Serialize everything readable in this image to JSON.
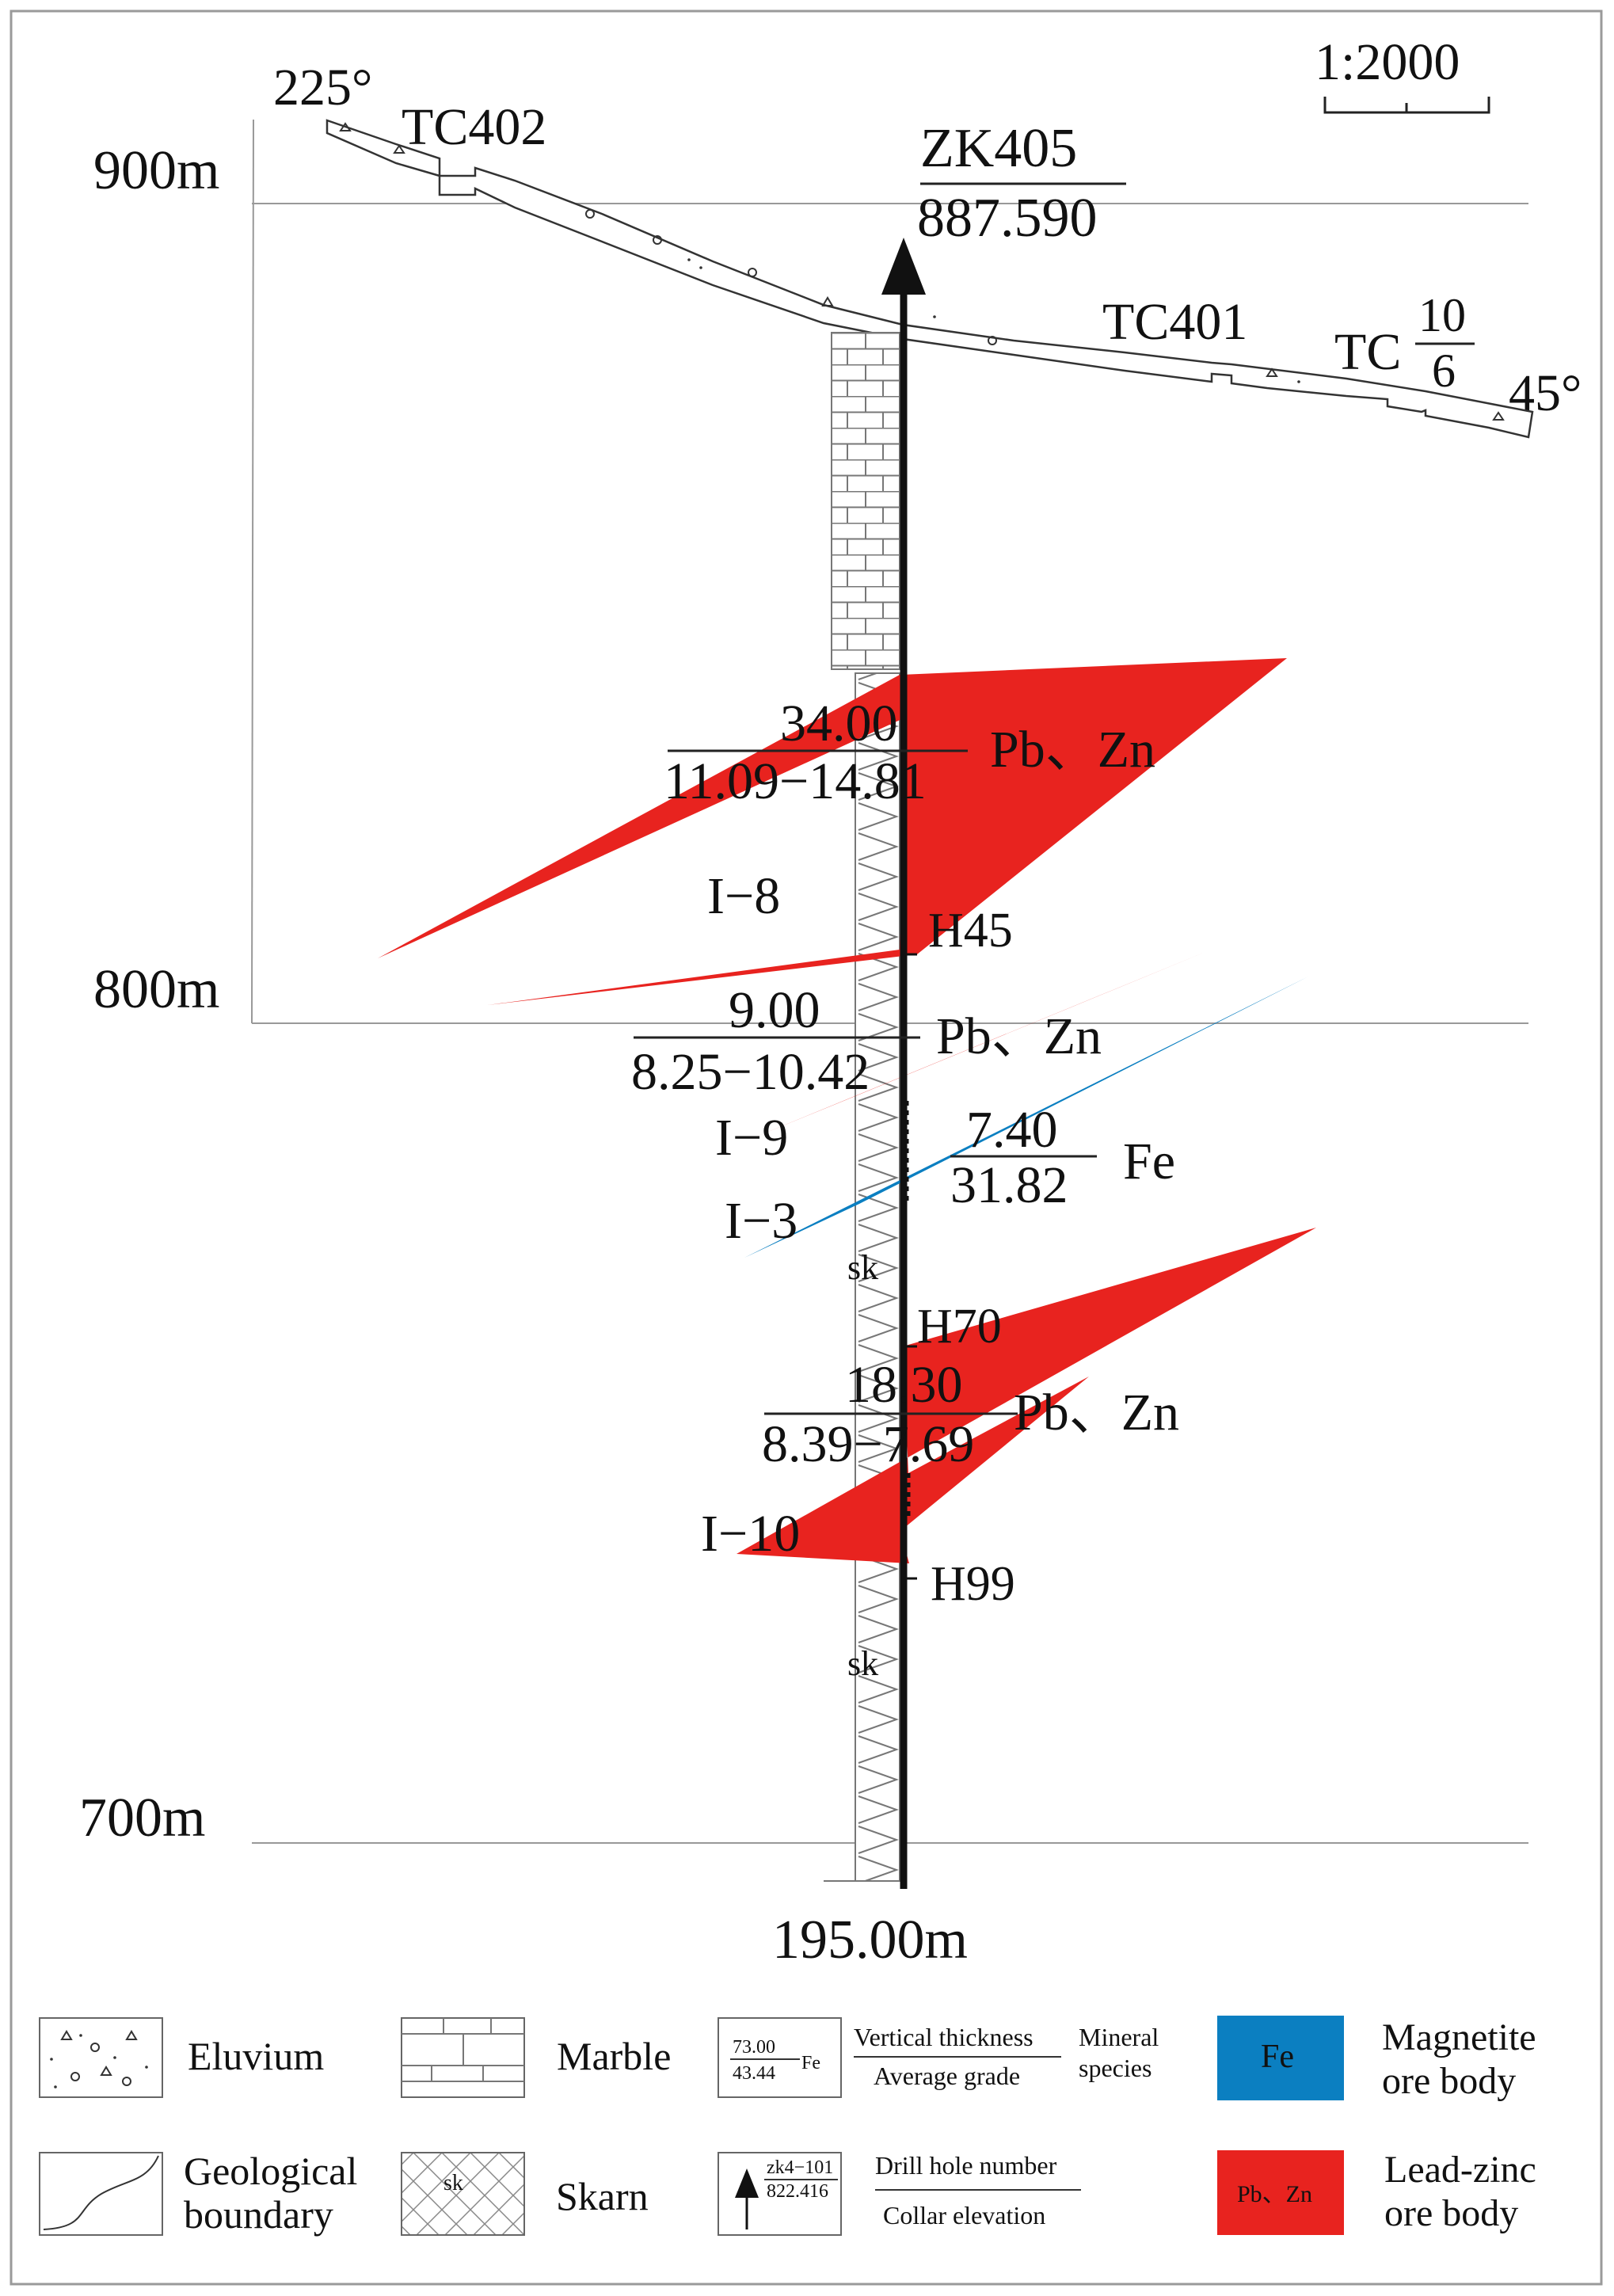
{
  "scale": "1:2000",
  "azimuth_left": "225°",
  "azimuth_right": "45°",
  "elevations": {
    "e900": "900m",
    "e800": "800m",
    "e700": "700m"
  },
  "drill_hole": {
    "number": "ZK405",
    "collar_elevation": "887.590",
    "final_depth": "195.00m"
  },
  "trenches": {
    "tc402": "TC402",
    "tc401": "TC401",
    "tc_prefix": "TC",
    "tc_num": "10",
    "tc_den": "6"
  },
  "samples": {
    "h45": "H45",
    "h70": "H70",
    "h99": "H99"
  },
  "rock_labels": {
    "skarn1": "sk",
    "skarn2": "sk"
  },
  "ore_bodies": [
    {
      "id": "I−8",
      "thickness": "34.00",
      "grade": "11.09−14.81",
      "mineral": "Pb、Zn",
      "color": "#e8231f"
    },
    {
      "id": "I−9",
      "thickness": "9.00",
      "grade": "8.25−10.42",
      "mineral": "Pb、Zn",
      "color": "#e8231f"
    },
    {
      "id": "I−3",
      "thickness": "7.40",
      "grade": "31.82",
      "mineral": "Fe",
      "color": "#0b7fc1"
    },
    {
      "id": "I−10",
      "thickness": "18.30",
      "grade": "8.39−7.69",
      "mineral": "Pb、Zn",
      "color": "#e8231f"
    }
  ],
  "legend": {
    "eluvium": "Eluvium",
    "marble": "Marble",
    "geo_boundary_1": "Geological",
    "geo_boundary_2": "boundary",
    "skarn": "Skarn",
    "skarn_symbol": "sk",
    "sample_thickness": "73.00",
    "sample_grade": "43.44",
    "sample_mineral": "Fe",
    "vertical_thickness": "Vertical thickness",
    "average_grade": "Average grade",
    "mineral_1": "Mineral",
    "mineral_2": "species",
    "drill_sample_number": "zk4−101",
    "drill_sample_elevation": "822.416",
    "drill_hole_number": "Drill hole number",
    "collar_elevation": "Collar elevation",
    "fe_box": "Fe",
    "magnetite_1": "Magnetite",
    "magnetite_2": "ore body",
    "pbzn_box": "Pb、Zn",
    "leadzinc_1": "Lead-zinc",
    "leadzinc_2": "ore body"
  },
  "colors": {
    "lead_zinc": "#e8231f",
    "magnetite": "#0b7fc1"
  }
}
